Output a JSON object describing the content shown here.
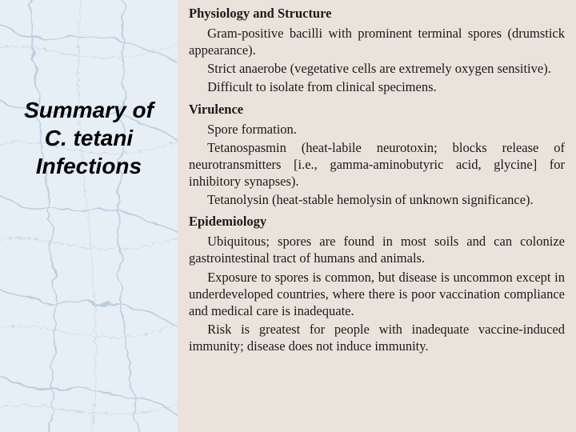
{
  "left": {
    "title_line1": "Summary of",
    "title_line2": "C. tetani",
    "title_line3": "Infections",
    "marble_base": "#e6eef6",
    "marble_vein": "#b7cadd",
    "marble_vein2": "#cfd9e6",
    "title_color": "#000000",
    "title_fontsize": 28
  },
  "right": {
    "bg_color": "#e9e3db",
    "text_color": "#1a1a1a",
    "body_fontsize": 16.5,
    "sections": [
      {
        "heading": "Physiology and Structure",
        "paras": [
          "Gram-positive bacilli with prominent terminal spores (drumstick appearance).",
          "Strict anaerobe (vegetative cells are extremely oxygen sensitive).",
          "Difficult to isolate from clinical specimens."
        ]
      },
      {
        "heading": "Virulence",
        "paras": [
          "Spore formation.",
          "Tetanospasmin (heat-labile neurotoxin; blocks release of neurotransmitters [i.e., gamma-aminobutyric acid, glycine] for inhibitory synapses).",
          "Tetanolysin (heat-stable hemolysin of unknown significance)."
        ]
      },
      {
        "heading": "Epidemiology",
        "paras": [
          "Ubiquitous; spores are found in most soils and can colonize gastrointestinal tract of humans and animals.",
          "Exposure to spores is common, but disease is uncommon except in underdeveloped countries, where there is poor vaccination compliance and medical care is inadequate.",
          "Risk is greatest for people with inadequate vaccine-induced immunity; disease does not induce immunity."
        ]
      }
    ]
  }
}
